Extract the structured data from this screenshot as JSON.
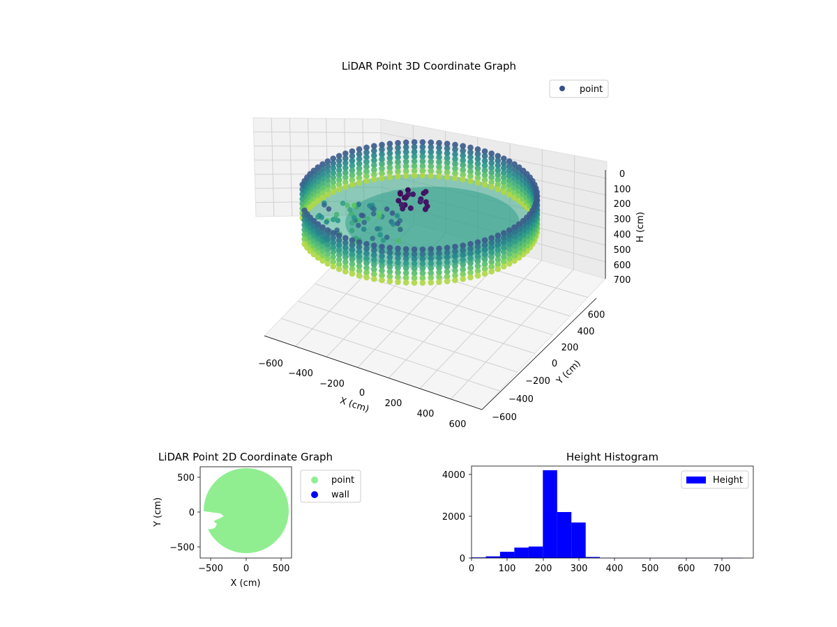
{
  "figure": {
    "panel3d": {
      "title": "LiDAR Point 3D Coordinate Graph",
      "legend_label": "point",
      "x_label": "X (cm)",
      "y_label": "Y (cm)",
      "z_label": "H (cm)",
      "x_ticks": [
        "−600",
        "−400",
        "−200",
        "0",
        "200",
        "400",
        "600"
      ],
      "y_ticks": [
        "600",
        "400",
        "200",
        "0",
        "−200",
        "−400",
        "−600"
      ],
      "z_ticks": [
        "0",
        "100",
        "200",
        "300",
        "400",
        "500",
        "600",
        "700"
      ]
    },
    "panel2d": {
      "title": "LiDAR Point 2D Coordinate Graph",
      "x_label": "X (cm)",
      "y_label": "Y (cm)",
      "x_ticks": [
        "−500",
        "0",
        "500"
      ],
      "y_ticks": [
        "500",
        "0",
        "−500"
      ],
      "legend": [
        {
          "label": "point",
          "color": "#90ee90"
        },
        {
          "label": "wall",
          "color": "#0000ff"
        }
      ]
    },
    "histogram": {
      "title": "Height Histogram",
      "legend_label": "Height",
      "x_ticks": [
        "0",
        "100",
        "200",
        "300",
        "400",
        "500",
        "600",
        "700"
      ],
      "y_ticks": [
        "4000",
        "2000",
        "0"
      ]
    }
  },
  "chart_data": [
    {
      "type": "scatter",
      "title": "LiDAR Point 3D Coordinate Graph",
      "xlabel": "X (cm)",
      "ylabel": "Y (cm)",
      "zlabel": "H (cm)",
      "xlim": [
        -650,
        650
      ],
      "ylim": [
        -650,
        650
      ],
      "zlim": [
        750,
        0
      ],
      "series": [
        {
          "name": "point",
          "shape": "cylindrical wall",
          "radius": 600,
          "h_range": [
            180,
            320
          ]
        }
      ],
      "colormap": "viridis",
      "legend_position": "top-right",
      "grid": true
    },
    {
      "type": "scatter",
      "title": "LiDAR Point 2D Coordinate Graph",
      "xlabel": "X (cm)",
      "ylabel": "Y (cm)",
      "xlim": [
        -650,
        650
      ],
      "ylim": [
        -650,
        650
      ],
      "series": [
        {
          "name": "point",
          "color": "#90ee90",
          "shape": "filled disk",
          "radius": 600
        },
        {
          "name": "wall",
          "color": "#0000ff"
        }
      ],
      "legend_position": "outside-right"
    },
    {
      "type": "bar",
      "title": "Height Histogram",
      "bin_edges": [
        0,
        40,
        80,
        120,
        160,
        200,
        240,
        280,
        320,
        360,
        400,
        440,
        480,
        520,
        560,
        600,
        640,
        680,
        720,
        760
      ],
      "values": [
        30,
        80,
        300,
        500,
        550,
        4200,
        2200,
        1700,
        50,
        10,
        5,
        5,
        5,
        5,
        5,
        5,
        5,
        5,
        5
      ],
      "series": [
        {
          "name": "Height",
          "color": "#0000ff"
        }
      ],
      "xlim": [
        0,
        790
      ],
      "ylim": [
        0,
        4400
      ],
      "legend_position": "top-right"
    }
  ]
}
